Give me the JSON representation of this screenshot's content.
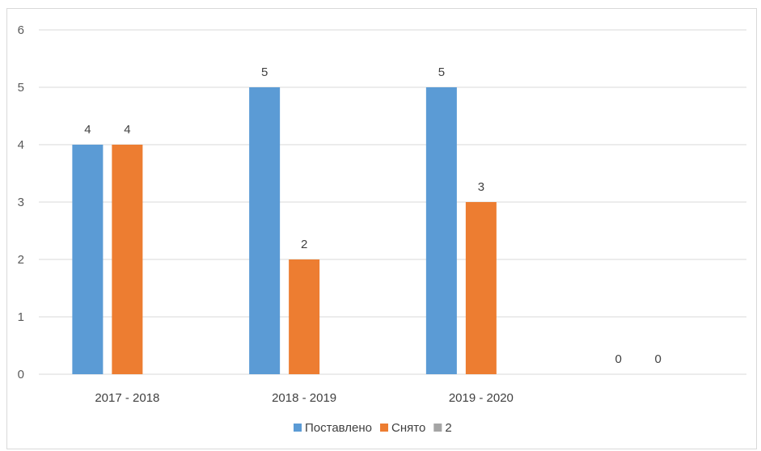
{
  "chart_data": {
    "type": "bar",
    "categories": [
      "2017 - 2018",
      "2018 - 2019",
      "2019 - 2020",
      ""
    ],
    "series": [
      {
        "name": "Поставлено",
        "values": [
          4,
          5,
          5,
          0
        ],
        "color": "#5b9bd5"
      },
      {
        "name": "Снято",
        "values": [
          4,
          2,
          3,
          0
        ],
        "color": "#ed7d31"
      },
      {
        "name": "2",
        "values": [
          null,
          null,
          null,
          null
        ],
        "color": "#a5a5a5"
      }
    ],
    "title": "",
    "xlabel": "",
    "ylabel": "",
    "ylim": [
      0,
      6
    ],
    "yticks": [
      0,
      1,
      2,
      3,
      4,
      5,
      6
    ],
    "grid": true,
    "legend_position": "bottom",
    "data_labels": true
  }
}
